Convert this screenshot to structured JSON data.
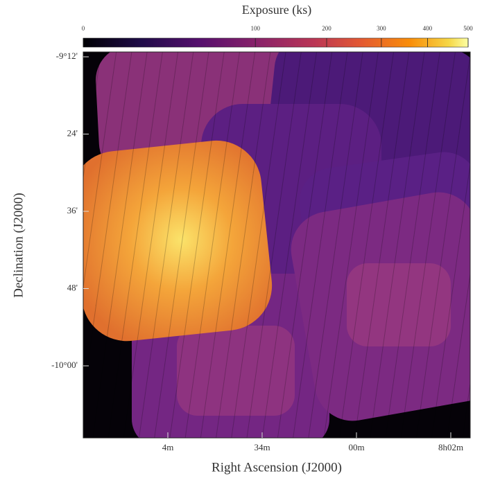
{
  "chart_data": {
    "type": "image",
    "title": "Exposure (ks)",
    "colorbar": {
      "lim": [
        0,
        500
      ],
      "ticks": [
        0,
        100,
        200,
        300,
        400,
        500
      ],
      "scale": "sqrt"
    },
    "x_label": "Right Ascension (J2000)",
    "y_label": "Declination (J2000)",
    "x_tick_labels": [
      "4m",
      "34m",
      "00m",
      "8h02m"
    ],
    "y_tick_labels": [
      "-9°12'",
      "24'",
      "36'",
      "48'",
      "-10°00'"
    ]
  }
}
